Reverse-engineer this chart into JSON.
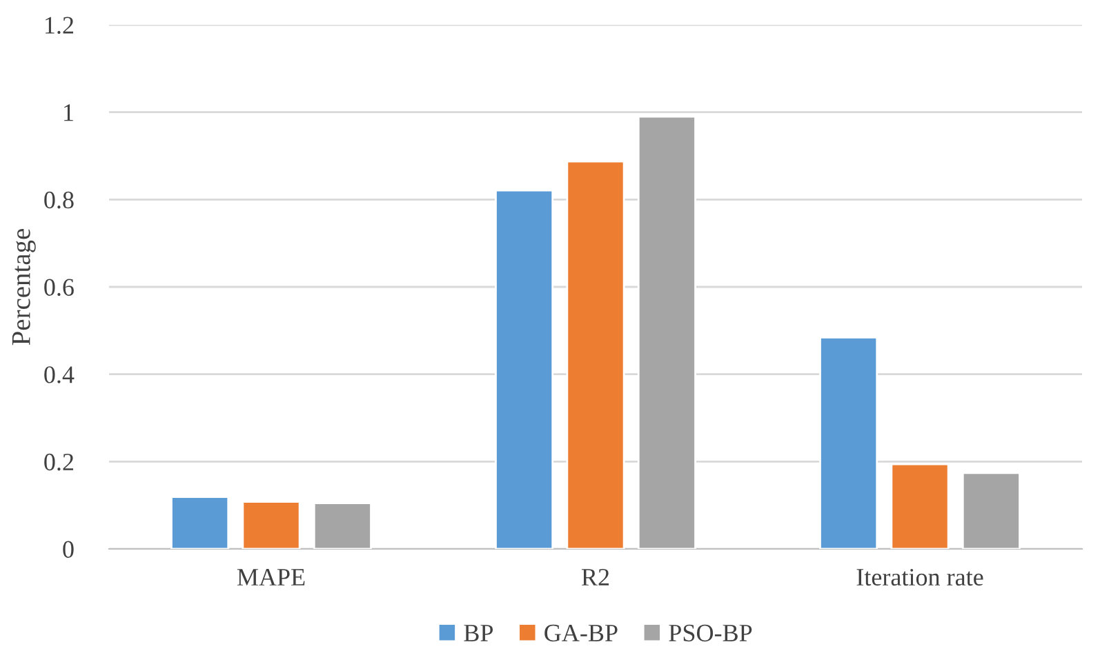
{
  "chart_data": {
    "type": "bar",
    "ylabel": "Percentage",
    "categories": [
      "MAPE",
      "R2",
      "Iteration rate"
    ],
    "series": [
      {
        "name": "BP",
        "color": "#5b9bd5",
        "values": [
          0.119,
          0.821,
          0.484
        ]
      },
      {
        "name": "GA-BP",
        "color": "#ed7d31",
        "values": [
          0.108,
          0.887,
          0.194
        ]
      },
      {
        "name": "PSO-BP",
        "color": "#a5a5a5",
        "values": [
          0.105,
          0.99,
          0.174
        ]
      }
    ],
    "ylim": [
      0,
      1.2
    ],
    "yticks": [
      0,
      0.2,
      0.4,
      0.6,
      0.8,
      1,
      1.2
    ],
    "grid": "y",
    "legend": "bottom"
  }
}
